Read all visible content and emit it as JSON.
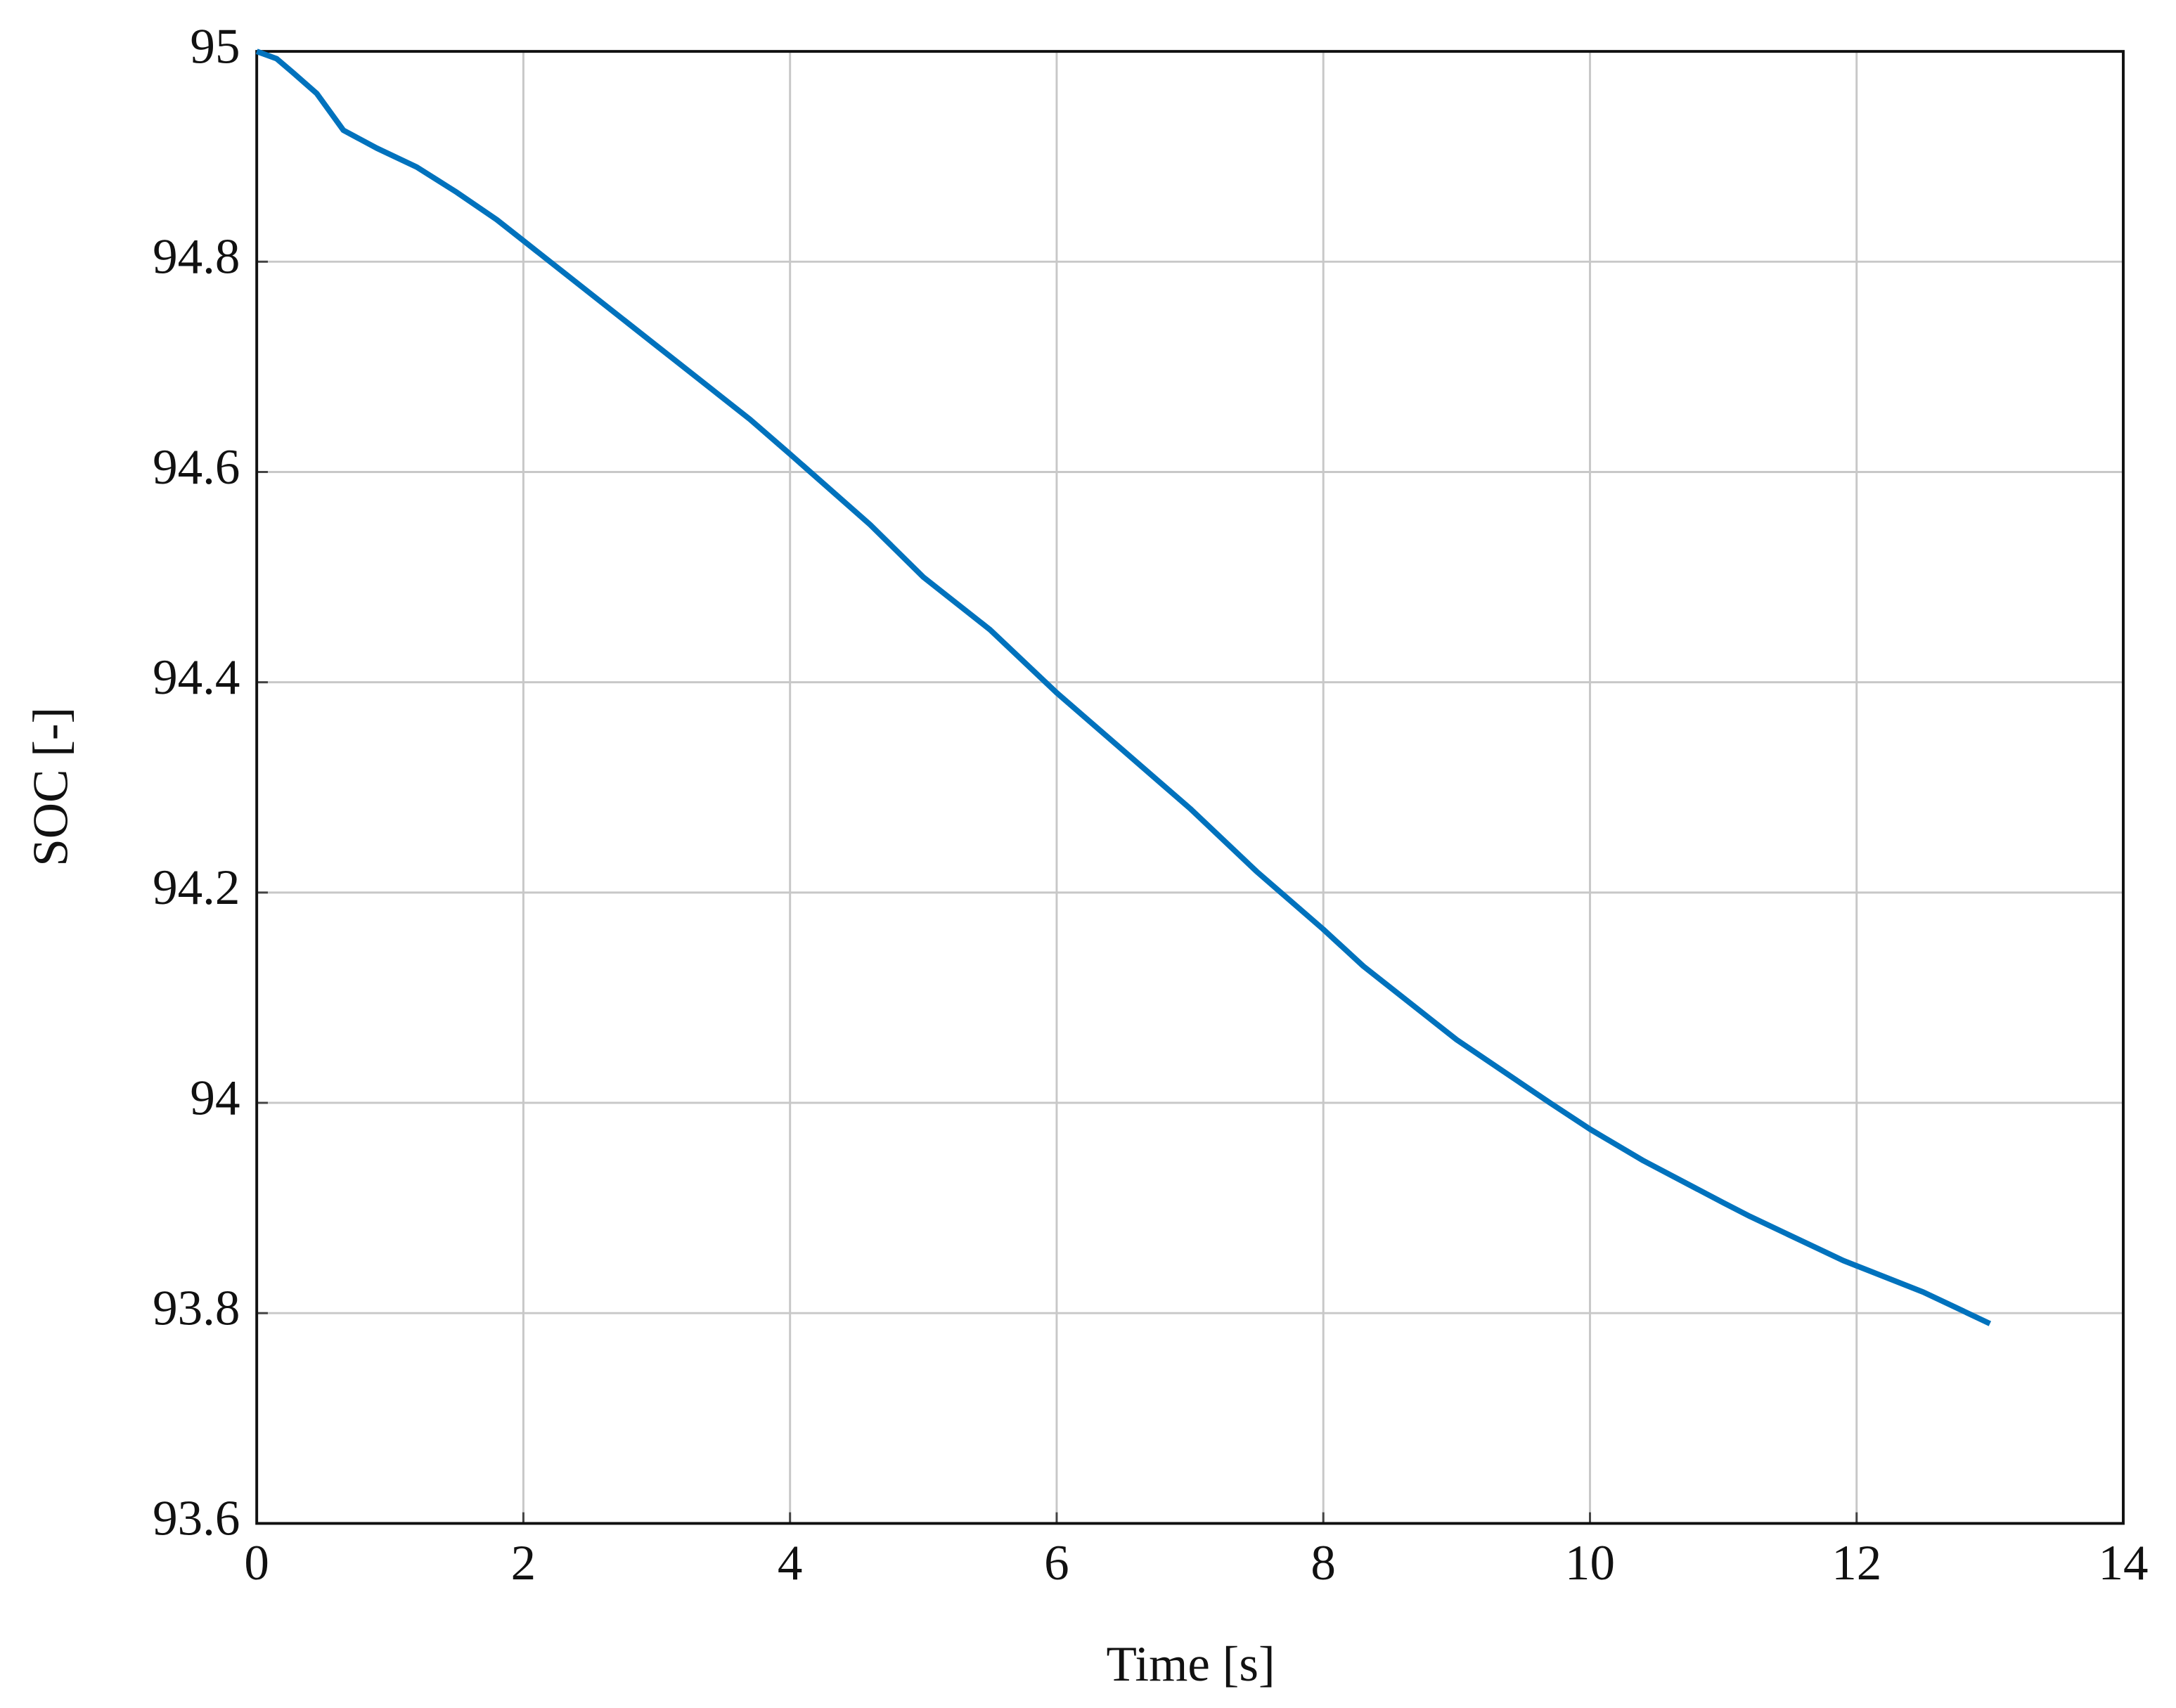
{
  "chart_data": {
    "type": "line",
    "x_label": "Time [s]",
    "y_label": "SOC [-]",
    "x": [
      0,
      0.15,
      0.27,
      0.45,
      0.65,
      0.9,
      1.2,
      1.5,
      1.8,
      2.0,
      2.5,
      3.0,
      3.7,
      4.0,
      4.6,
      5.0,
      5.5,
      6.0,
      6.5,
      7.0,
      7.5,
      8.0,
      8.3,
      9.0,
      9.7,
      10.0,
      10.4,
      11.0,
      11.2,
      11.9,
      12.5,
      13.0
    ],
    "series": [
      {
        "name": "SOC",
        "color": "#0072bd",
        "values": [
          95.0,
          94.993,
          94.98,
          94.96,
          94.925,
          94.908,
          94.89,
          94.866,
          94.84,
          94.82,
          94.77,
          94.72,
          94.65,
          94.617,
          94.55,
          94.5,
          94.45,
          94.39,
          94.335,
          94.28,
          94.22,
          94.165,
          94.13,
          94.06,
          94.0,
          93.975,
          93.945,
          93.905,
          93.892,
          93.85,
          93.82,
          93.79
        ]
      }
    ],
    "xlim": [
      0,
      14
    ],
    "xticks": [
      0,
      2,
      4,
      6,
      8,
      10,
      12,
      14
    ],
    "ylim": [
      93.6,
      95
    ],
    "yticks": [
      93.6,
      93.8,
      94,
      94.2,
      94.4,
      94.6,
      94.8,
      95
    ],
    "grid": true
  }
}
